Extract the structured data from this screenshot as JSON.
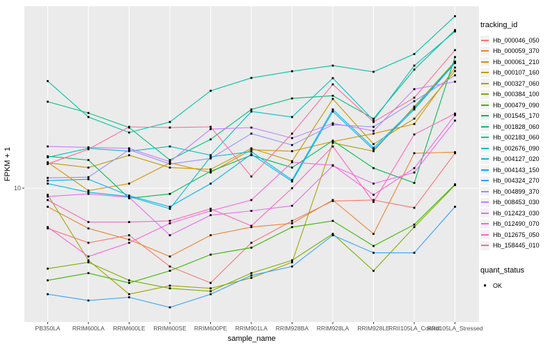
{
  "figure": {
    "background": "#ffffff",
    "panel_bg": "#ebebeb",
    "grid_color": "#ffffff",
    "tick_color": "#333333",
    "tick_label_color": "#4d4d4d",
    "axis_title_color": "#000000",
    "point_color": "#000000",
    "legend_key_bg": "#f2f2f2"
  },
  "chart_data": {
    "type": "line",
    "title": "",
    "xlabel": "sample_name",
    "ylabel": "FPKM + 1",
    "y_scale": "log10",
    "y_ticks": [
      {
        "label": "10",
        "value": 10
      }
    ],
    "ylim": [
      1.9,
      95
    ],
    "grid": "major",
    "point_marker": "square",
    "legend_position": "right",
    "legend_title": "tracking_id",
    "categories": [
      "PB350LA",
      "RRIM600LA",
      "RRIM600LE",
      "RRIM600SE",
      "RRIM600PE",
      "RRIM901LA",
      "RRIM928BA",
      "RRIM928LA",
      "RRIM928LE",
      "RRII105LA_Control",
      "RRII105LA_Stressed"
    ],
    "series": [
      {
        "name": "Hb_000046_050",
        "color": "#F8766D",
        "values": [
          6.0,
          5.0,
          5.5,
          3.7,
          3.0,
          5.0,
          6.6,
          8.5,
          8.6,
          7.8,
          15.6
        ]
      },
      {
        "name": "Hb_000059_370",
        "color": "#EA8331",
        "values": [
          7.9,
          6.0,
          5.2,
          4.2,
          5.5,
          6.1,
          6.4,
          8.6,
          5.6,
          15.6,
          15.8
        ]
      },
      {
        "name": "Hb_000061_210",
        "color": "#D89000",
        "values": [
          13.9,
          9.7,
          10.6,
          13.8,
          12.2,
          16.3,
          16.0,
          18.1,
          20.0,
          22.6,
          46.3
        ]
      },
      {
        "name": "Hb_000107_160",
        "color": "#C09B00",
        "values": [
          13.8,
          13.0,
          15.2,
          13.0,
          12.7,
          16.6,
          14.1,
          31.1,
          17.5,
          24.2,
          44.3
        ]
      },
      {
        "name": "Hb_000327_060",
        "color": "#A3A500",
        "values": [
          9.2,
          4.0,
          2.6,
          2.9,
          2.8,
          3.2,
          3.9,
          17.8,
          16.0,
          28.2,
          50.0
        ]
      },
      {
        "name": "Hb_000384_100",
        "color": "#7CAE00",
        "values": [
          3.6,
          3.9,
          3.1,
          2.8,
          2.7,
          3.4,
          4.0,
          5.6,
          3.5,
          6.1,
          10.4
        ]
      },
      {
        "name": "Hb_000479_090",
        "color": "#39B600",
        "values": [
          3.1,
          3.4,
          3.0,
          3.5,
          4.3,
          4.7,
          6.1,
          6.6,
          4.8,
          6.3,
          10.5
        ]
      },
      {
        "name": "Hb_001545_170",
        "color": "#00BB4E",
        "values": [
          15.0,
          14.3,
          8.8,
          9.3,
          12.4,
          15.2,
          13.0,
          18.3,
          12.9,
          10.7,
          52.9
        ]
      },
      {
        "name": "Hb_001828_060",
        "color": "#00BF7D",
        "values": [
          30.0,
          26.0,
          21.6,
          14.3,
          18.6,
          27.2,
          31.3,
          32.4,
          24.2,
          45.1,
          74.6
        ]
      },
      {
        "name": "Hb_002183_060",
        "color": "#00C1A3",
        "values": [
          39.0,
          24.7,
          20.3,
          23.2,
          34.5,
          40.6,
          44.2,
          47.5,
          43.9,
          55.0,
          89.0
        ]
      },
      {
        "name": "Hb_002676_090",
        "color": "#00BFC4",
        "values": [
          14.8,
          16.6,
          16.0,
          17.0,
          15.2,
          26.5,
          24.7,
          40.5,
          23.7,
          47.5,
          73.3
        ]
      },
      {
        "name": "Hb_004127_020",
        "color": "#00BAE0",
        "values": [
          10.6,
          9.5,
          9.0,
          7.7,
          14.9,
          15.9,
          11.1,
          27.2,
          16.7,
          27.7,
          49.5
        ]
      },
      {
        "name": "Hb_004143_150",
        "color": "#00B0F6",
        "values": [
          11.0,
          11.2,
          9.1,
          7.9,
          10.6,
          15.4,
          10.9,
          26.5,
          16.3,
          27.2,
          49.0
        ]
      },
      {
        "name": "Hb_004324_270",
        "color": "#35A2FF",
        "values": [
          2.6,
          2.4,
          2.5,
          2.2,
          2.6,
          3.3,
          3.7,
          5.5,
          4.4,
          4.4,
          7.9
        ]
      },
      {
        "name": "Hb_004899_370",
        "color": "#9590FF",
        "values": [
          11.4,
          11.5,
          16.3,
          13.6,
          14.6,
          20.0,
          17.3,
          22.4,
          21.8,
          30.2,
          42.0
        ]
      },
      {
        "name": "Hb_008453_030",
        "color": "#C77CFF",
        "values": [
          17.0,
          16.8,
          16.6,
          14.0,
          21.2,
          21.6,
          18.9,
          22.8,
          20.7,
          35.2,
          38.7
        ]
      },
      {
        "name": "Hb_012423_030",
        "color": "#E76BF3",
        "values": [
          9.0,
          9.3,
          8.9,
          5.5,
          7.1,
          7.5,
          8.0,
          13.3,
          10.6,
          12.2,
          23.6
        ]
      },
      {
        "name": "Hb_012490_070",
        "color": "#FA62DB",
        "values": [
          6.1,
          4.2,
          5.0,
          6.4,
          7.5,
          8.6,
          13.9,
          13.4,
          9.2,
          12.9,
          25.3
        ]
      },
      {
        "name": "Hb_012675_050",
        "color": "#FF62BC",
        "values": [
          8.6,
          6.5,
          6.5,
          6.6,
          7.7,
          6.2,
          10.0,
          17.0,
          8.4,
          19.8,
          25.8
        ]
      },
      {
        "name": "Hb_158445_010",
        "color": "#FF6A98",
        "values": [
          13.6,
          16.4,
          21.8,
          21.6,
          21.8,
          11.6,
          20.0,
          37.4,
          23.2,
          31.6,
          57.8
        ]
      }
    ],
    "quant_status": {
      "title": "quant_status",
      "entries": [
        {
          "label": "OK",
          "marker": "black-square"
        }
      ]
    }
  }
}
